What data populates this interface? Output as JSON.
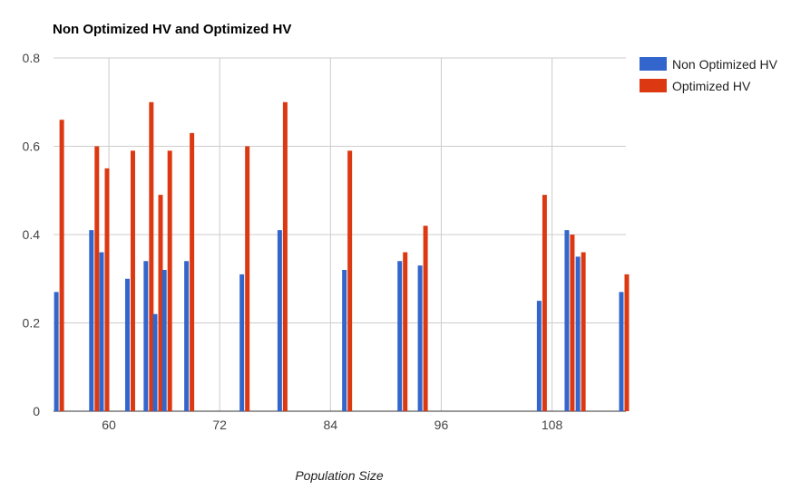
{
  "chart_data": {
    "type": "bar",
    "title": "Non Optimized HV and Optimized HV",
    "xlabel": "Population Size",
    "ylabel": "",
    "xlim": [
      54,
      116
    ],
    "ylim": [
      0,
      0.8
    ],
    "x_ticks": [
      60,
      72,
      84,
      96,
      108
    ],
    "y_ticks": [
      0,
      0.2,
      0.4,
      0.6,
      0.8
    ],
    "x_tick_labels": [
      "60",
      "72",
      "84",
      "96",
      "108"
    ],
    "y_tick_labels": [
      "0",
      "0.2",
      "0.4",
      "0.6",
      "0.8"
    ],
    "grid": true,
    "legend_position": "right",
    "colors": [
      "#3366cc",
      "#dc3912"
    ],
    "x": [
      54.6,
      58.4,
      59.5,
      62.3,
      64.3,
      65.3,
      66.3,
      68.7,
      74.7,
      78.8,
      85.8,
      91.8,
      94.0,
      106.9,
      109.9,
      111.1,
      115.8
    ],
    "series": [
      {
        "name": "Non Optimized HV",
        "values": [
          0.27,
          0.41,
          0.36,
          0.3,
          0.34,
          0.22,
          0.32,
          0.34,
          0.31,
          0.41,
          0.32,
          0.34,
          0.33,
          0.25,
          0.41,
          0.35,
          0.27
        ]
      },
      {
        "name": "Optimized HV",
        "values": [
          0.66,
          0.6,
          0.55,
          0.59,
          0.7,
          0.49,
          0.59,
          0.63,
          0.6,
          0.7,
          0.59,
          0.36,
          0.42,
          0.49,
          0.4,
          0.36,
          0.31
        ]
      }
    ]
  }
}
